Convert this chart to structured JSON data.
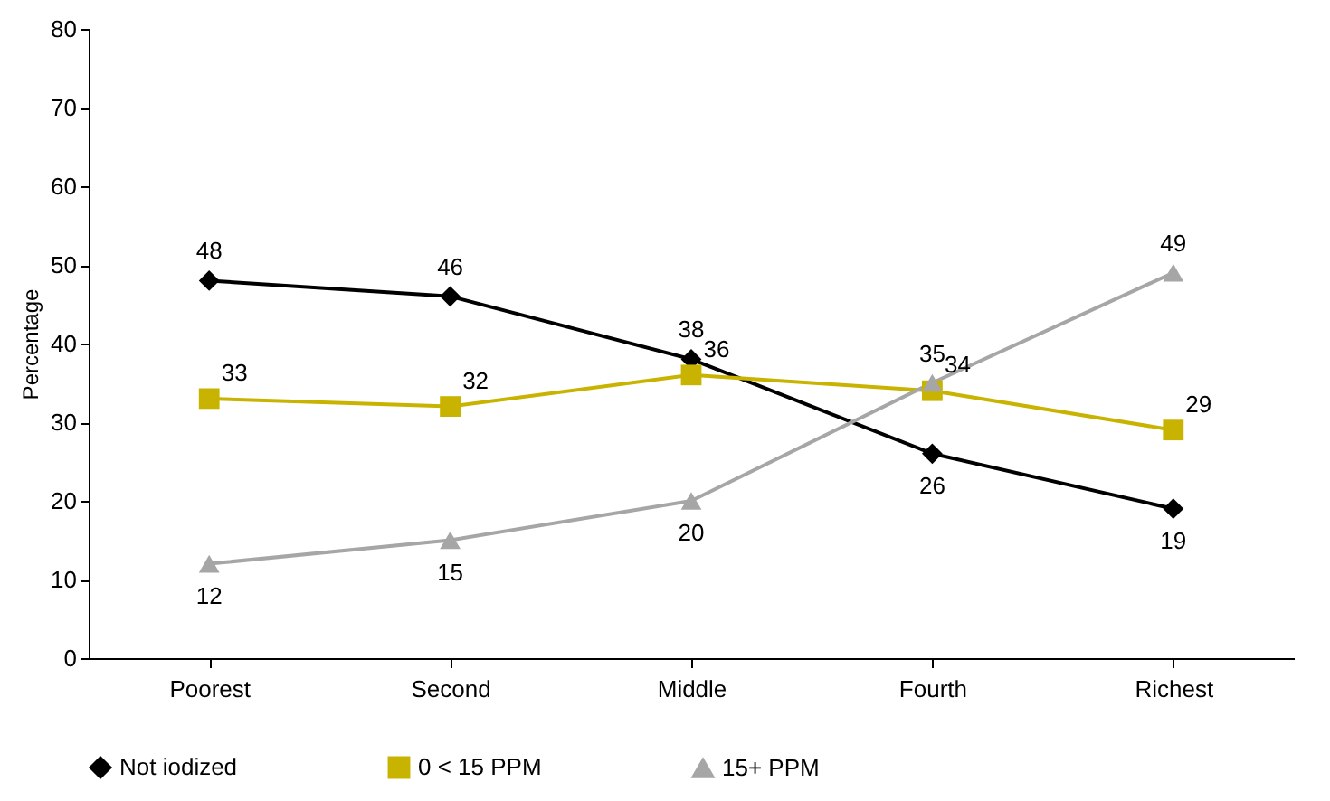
{
  "chart_data": {
    "type": "line",
    "ylabel": "Percentage",
    "categories": [
      "Poorest",
      "Second",
      "Middle",
      "Fourth",
      "Richest"
    ],
    "series": [
      {
        "name": "Not iodized",
        "color": "#000000",
        "marker": "diamond",
        "values": [
          48,
          46,
          38,
          26,
          19
        ]
      },
      {
        "name": "0 < 15 PPM",
        "color": "#c8b400",
        "marker": "square",
        "values": [
          33,
          32,
          36,
          34,
          29
        ]
      },
      {
        "name": "15+ PPM",
        "color": "#a6a6a6",
        "marker": "triangle",
        "values": [
          12,
          15,
          20,
          35,
          49
        ]
      }
    ],
    "ylim": [
      0,
      80
    ],
    "yticks": [
      0,
      10,
      20,
      30,
      40,
      50,
      60,
      70,
      80
    ],
    "grid": false,
    "legend": "bottom",
    "data_labels": true
  }
}
